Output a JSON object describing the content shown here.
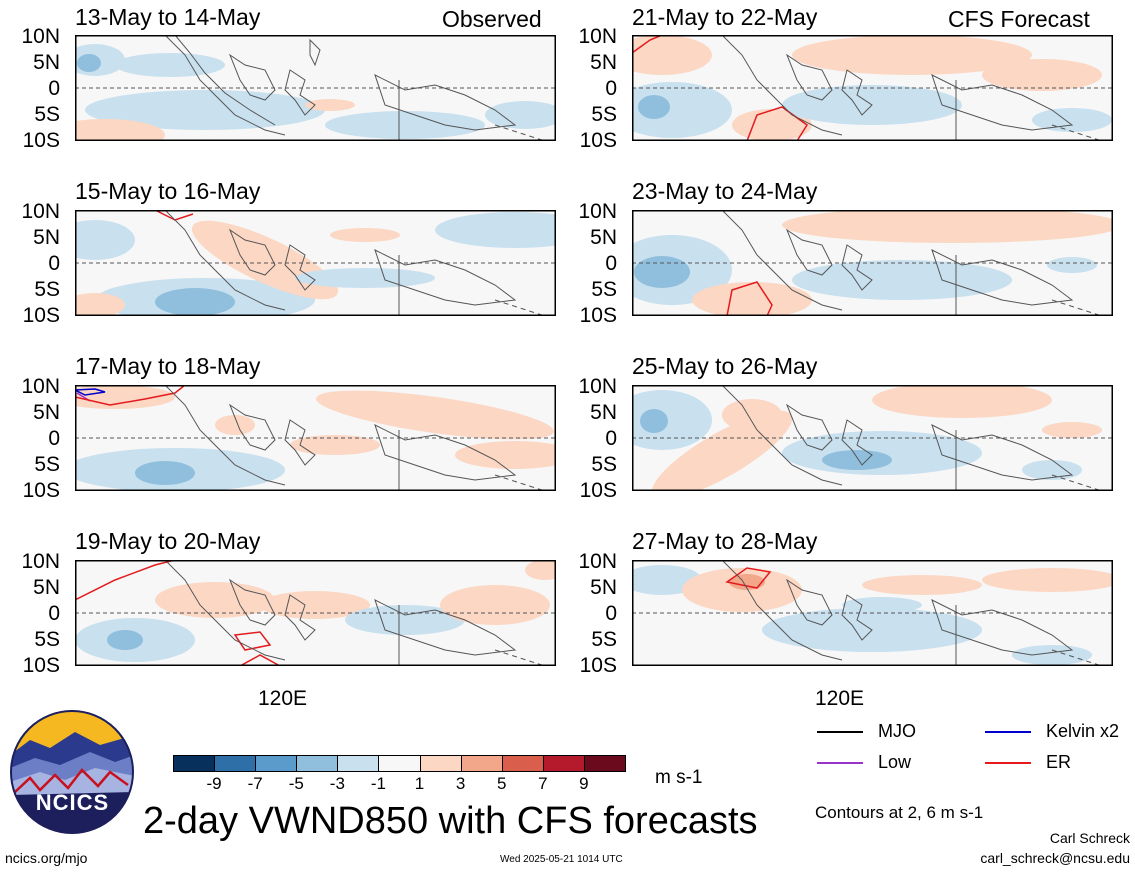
{
  "panels_left_header": "Observed",
  "panels_right_header": "CFS Forecast",
  "y_ticks": [
    "10N",
    "5N",
    "0",
    "5S",
    "10S"
  ],
  "x_tick": "120E",
  "panels": [
    {
      "title": "13-May to 14-May",
      "column": "observed"
    },
    {
      "title": "15-May to 16-May",
      "column": "observed"
    },
    {
      "title": "17-May to 18-May",
      "column": "observed"
    },
    {
      "title": "19-May to 20-May",
      "column": "observed"
    },
    {
      "title": "21-May to 22-May",
      "column": "forecast"
    },
    {
      "title": "23-May to 24-May",
      "column": "forecast"
    },
    {
      "title": "25-May to 26-May",
      "column": "forecast"
    },
    {
      "title": "27-May to 28-May",
      "column": "forecast"
    }
  ],
  "colorbar": {
    "labels": [
      "-9",
      "-7",
      "-5",
      "-3",
      "-1",
      "1",
      "3",
      "5",
      "7",
      "9"
    ],
    "colors": [
      "#08305d",
      "#2f6fa7",
      "#5b9bcc",
      "#8fbfdd",
      "#c9e0ef",
      "#f7f7f7",
      "#fbd7c4",
      "#f2a68a",
      "#d95f4c",
      "#b41a2c",
      "#6a0a1c"
    ],
    "units": "m s-1"
  },
  "legend": {
    "items": [
      {
        "label": "MJO",
        "color": "#000000"
      },
      {
        "label": "Kelvin x2",
        "color": "#0000cc"
      },
      {
        "label": "Low",
        "color": "#9933cc"
      },
      {
        "label": "ER",
        "color": "#e41a1c"
      }
    ],
    "contours_note": "Contours at 2, 6 m s-1"
  },
  "main_title": "2-day VWND850 with CFS forecasts",
  "logo_text": "NCICS",
  "footer": {
    "url": "ncics.org/mjo",
    "timestamp": "Wed 2025-05-21 1014 UTC",
    "author": "Carl Schreck",
    "email": "carl_schreck@ncsu.edu"
  }
}
